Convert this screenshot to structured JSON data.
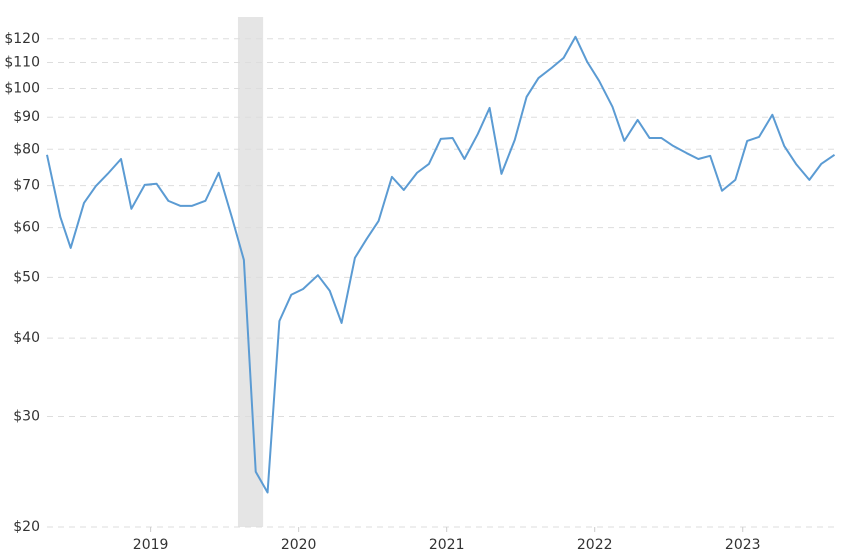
{
  "chart_data": {
    "type": "line",
    "log_y": true,
    "grid": true,
    "xlim": [
      2018.8,
      2024.13
    ],
    "ylim": [
      20,
      130
    ],
    "xticks": [
      {
        "value": 2019.5,
        "label": "2019"
      },
      {
        "value": 2020.5,
        "label": "2020"
      },
      {
        "value": 2021.5,
        "label": "2021"
      },
      {
        "value": 2022.5,
        "label": "2022"
      },
      {
        "value": 2023.5,
        "label": "2023"
      }
    ],
    "yticks": [
      {
        "value": 20,
        "label": "$20"
      },
      {
        "value": 30,
        "label": "$30"
      },
      {
        "value": 40,
        "label": "$40"
      },
      {
        "value": 50,
        "label": "$50"
      },
      {
        "value": 60,
        "label": "$60"
      },
      {
        "value": 70,
        "label": "$70"
      },
      {
        "value": 80,
        "label": "$80"
      },
      {
        "value": 90,
        "label": "$90"
      },
      {
        "value": 100,
        "label": "$100"
      },
      {
        "value": 110,
        "label": "$110"
      },
      {
        "value": 120,
        "label": "$120"
      }
    ],
    "shaded_ranges": [
      [
        2020.09,
        2020.26
      ]
    ],
    "shade_color": "#e5e5e5",
    "series": [
      {
        "color": "#5b9bd3",
        "x": [
          2018.8,
          2018.89,
          2018.96,
          2019.05,
          2019.13,
          2019.21,
          2019.3,
          2019.37,
          2019.46,
          2019.54,
          2019.62,
          2019.7,
          2019.78,
          2019.87,
          2019.96,
          2020.05,
          2020.13,
          2020.21,
          2020.29,
          2020.37,
          2020.45,
          2020.53,
          2020.63,
          2020.71,
          2020.79,
          2020.88,
          2020.96,
          2021.04,
          2021.13,
          2021.21,
          2021.3,
          2021.38,
          2021.46,
          2021.54,
          2021.62,
          2021.71,
          2021.79,
          2021.87,
          2021.96,
          2022.04,
          2022.12,
          2022.21,
          2022.29,
          2022.37,
          2022.45,
          2022.53,
          2022.62,
          2022.7,
          2022.79,
          2022.87,
          2022.95,
          2023.03,
          2023.12,
          2023.2,
          2023.28,
          2023.36,
          2023.45,
          2023.53,
          2023.61,
          2023.7,
          2023.78,
          2023.86,
          2023.95,
          2024.03,
          2024.12
        ],
        "values": [
          78.4,
          62.4,
          55.7,
          65.7,
          69.9,
          73.1,
          77.2,
          64.3,
          70.2,
          70.5,
          66.2,
          65.0,
          65.0,
          66.2,
          73.4,
          62.2,
          53.3,
          24.5,
          22.7,
          42.6,
          46.9,
          47.9,
          50.4,
          47.6,
          42.3,
          53.7,
          57.6,
          61.5,
          72.3,
          68.9,
          73.4,
          75.8,
          83.1,
          83.4,
          77.2,
          84.6,
          93.1,
          73.1,
          82.8,
          97.0,
          103.9,
          107.9,
          111.9,
          120.9,
          110.2,
          102.8,
          93.5,
          82.5,
          89.1,
          83.4,
          83.4,
          81.0,
          78.9,
          77.2,
          78.1,
          68.7,
          71.5,
          82.5,
          83.7,
          90.8,
          81.0,
          75.8,
          71.5,
          75.8,
          78.4
        ]
      }
    ]
  }
}
